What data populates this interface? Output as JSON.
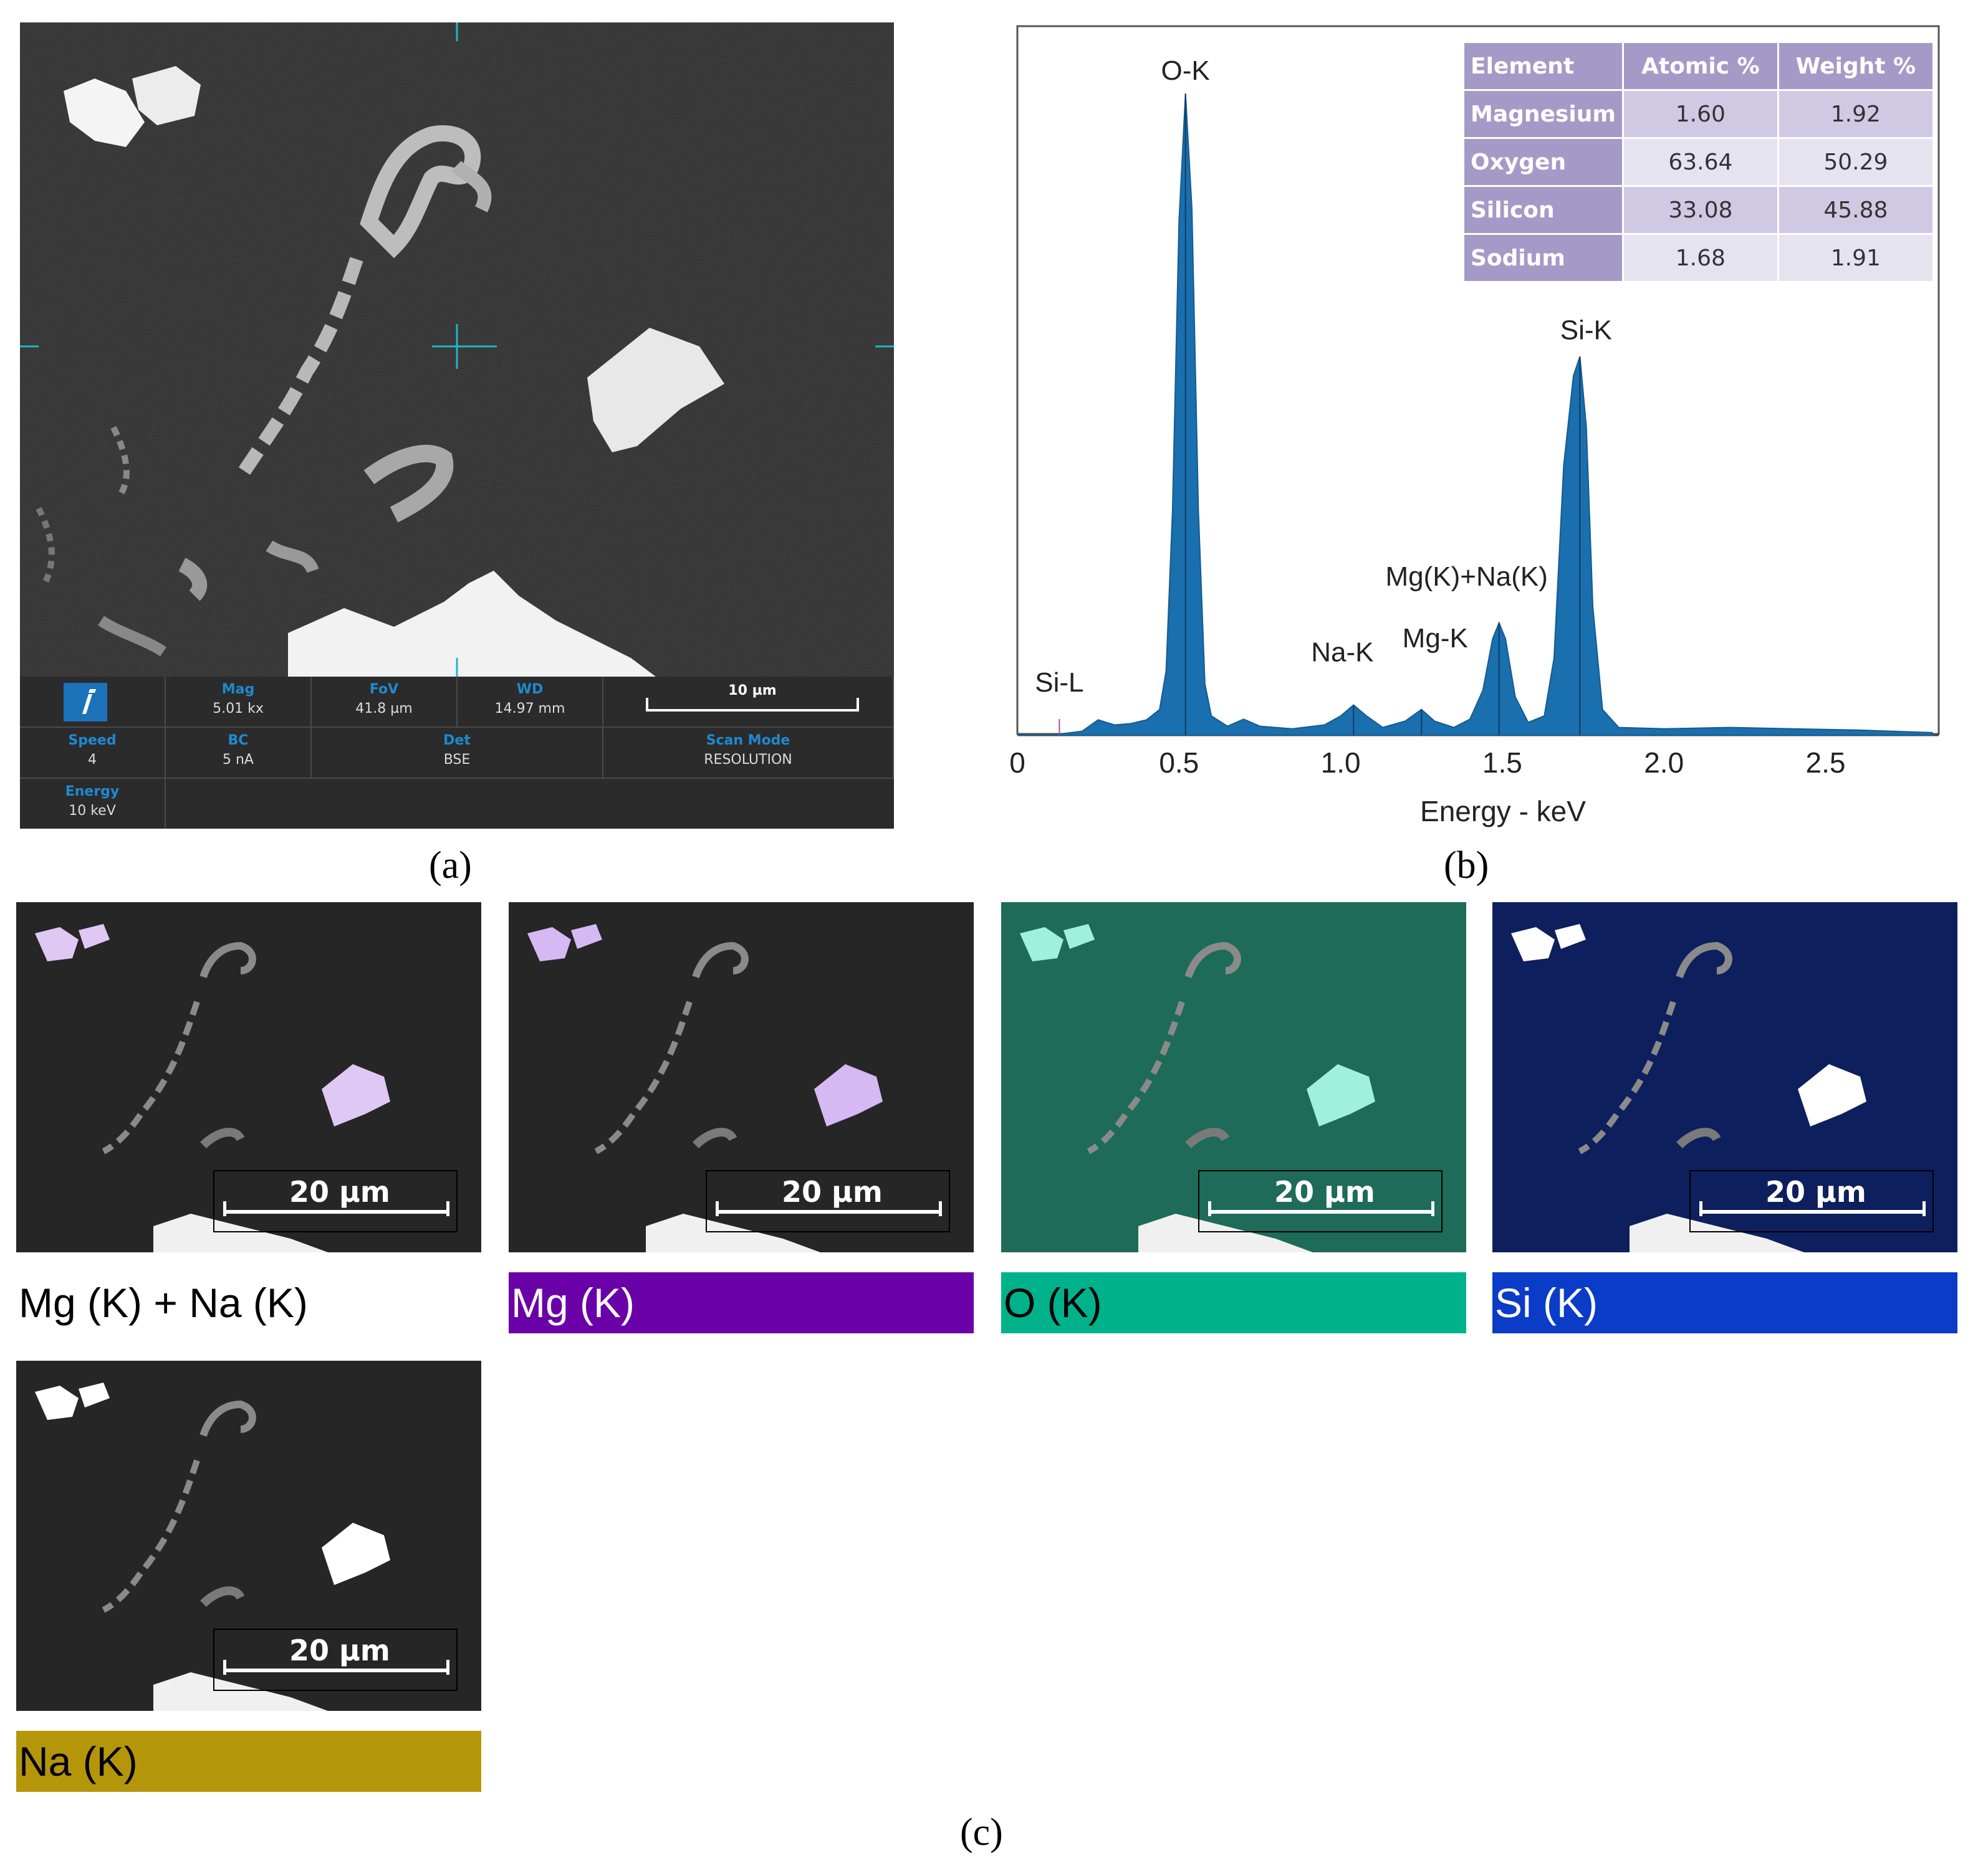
{
  "panel_a": {
    "label": "(a)",
    "info_bar": {
      "mag": {
        "label": "Mag",
        "value": "5.01 kx"
      },
      "fov": {
        "label": "FoV",
        "value": "41.8 µm"
      },
      "wd": {
        "label": "WD",
        "value": "14.97 mm"
      },
      "scale": "10 µm",
      "speed": {
        "label": "Speed",
        "value": "4"
      },
      "bc": {
        "label": "BC",
        "value": "5 nA"
      },
      "det": {
        "label": "Det",
        "value": "BSE"
      },
      "scan_mode": {
        "label": "Scan Mode",
        "value": "RESOLUTION"
      },
      "energy": {
        "label": "Energy",
        "value": "10 keV"
      }
    }
  },
  "panel_b": {
    "label": "(b)",
    "table": {
      "headers": [
        "Element",
        "Atomic %",
        "Weight %"
      ],
      "rows": [
        [
          "Magnesium",
          "1.60",
          "1.92"
        ],
        [
          "Oxygen",
          "63.64",
          "50.29"
        ],
        [
          "Silicon",
          "33.08",
          "45.88"
        ],
        [
          "Sodium",
          "1.68",
          "1.91"
        ]
      ]
    }
  },
  "chart_data": {
    "type": "area",
    "xlabel": "Energy - keV",
    "ylabel": "",
    "xlim": [
      0,
      2.85
    ],
    "ylim": [
      0,
      1.0
    ],
    "xticks": [
      "0",
      "0.5",
      "1.0",
      "1.5",
      "2.0",
      "2.5"
    ],
    "grid": false,
    "color": "#1a6fae",
    "peaks": [
      {
        "label": "Si-L",
        "x": 0.13,
        "y": 0.0
      },
      {
        "label": "O-K",
        "x": 0.52,
        "y": 1.0
      },
      {
        "label": "Na-K",
        "x": 1.04,
        "y": 0.047
      },
      {
        "label": "Mg-K",
        "x": 1.25,
        "y": 0.04
      },
      {
        "label": "Mg(K)+Na(K)",
        "x": 1.49,
        "y": 0.175
      },
      {
        "label": "Si-K",
        "x": 1.74,
        "y": 0.59
      }
    ],
    "spectrum": [
      [
        0.0,
        0.0
      ],
      [
        0.1,
        0.0
      ],
      [
        0.2,
        0.006
      ],
      [
        0.25,
        0.024
      ],
      [
        0.3,
        0.016
      ],
      [
        0.35,
        0.018
      ],
      [
        0.4,
        0.024
      ],
      [
        0.44,
        0.04
      ],
      [
        0.46,
        0.1
      ],
      [
        0.48,
        0.35
      ],
      [
        0.5,
        0.8
      ],
      [
        0.52,
        1.0
      ],
      [
        0.54,
        0.82
      ],
      [
        0.56,
        0.35
      ],
      [
        0.58,
        0.08
      ],
      [
        0.6,
        0.03
      ],
      [
        0.65,
        0.014
      ],
      [
        0.7,
        0.025
      ],
      [
        0.75,
        0.014
      ],
      [
        0.85,
        0.01
      ],
      [
        0.95,
        0.016
      ],
      [
        1.0,
        0.03
      ],
      [
        1.04,
        0.047
      ],
      [
        1.08,
        0.03
      ],
      [
        1.13,
        0.012
      ],
      [
        1.2,
        0.022
      ],
      [
        1.25,
        0.04
      ],
      [
        1.29,
        0.022
      ],
      [
        1.35,
        0.012
      ],
      [
        1.4,
        0.025
      ],
      [
        1.44,
        0.07
      ],
      [
        1.47,
        0.15
      ],
      [
        1.49,
        0.175
      ],
      [
        1.51,
        0.15
      ],
      [
        1.54,
        0.06
      ],
      [
        1.58,
        0.02
      ],
      [
        1.63,
        0.03
      ],
      [
        1.66,
        0.12
      ],
      [
        1.69,
        0.42
      ],
      [
        1.72,
        0.56
      ],
      [
        1.74,
        0.59
      ],
      [
        1.76,
        0.48
      ],
      [
        1.78,
        0.2
      ],
      [
        1.81,
        0.04
      ],
      [
        1.86,
        0.012
      ],
      [
        2.0,
        0.01
      ],
      [
        2.2,
        0.012
      ],
      [
        2.4,
        0.01
      ],
      [
        2.6,
        0.008
      ],
      [
        2.83,
        0.004
      ]
    ]
  },
  "panel_c": {
    "label": "(c)",
    "maps": [
      {
        "label": "Mg (K) + Na (K)",
        "scale": "20 µm",
        "bg": "#262626",
        "tint": "#e0c8f5",
        "label_bg": "#ffffff",
        "label_color": "#000000"
      },
      {
        "label": "Mg (K)",
        "scale": "20 µm",
        "bg": "#262626",
        "tint": "#d6b9f3",
        "label_bg": "#6a00a8",
        "label_color": "#ffffff"
      },
      {
        "label": "O (K)",
        "scale": "20 µm",
        "bg": "#1d6b58",
        "tint": "#9ff0dc",
        "label_bg": "#00b28c",
        "label_color": "#000000"
      },
      {
        "label": "Si (K)",
        "scale": "20 µm",
        "bg": "#0d1f5c",
        "tint": "#ffffff",
        "label_bg": "#0a3cc7",
        "label_color": "#ffffff"
      },
      {
        "label": "Na (K)",
        "scale": "20 µm",
        "bg": "#262626",
        "tint": "#ffffff",
        "label_bg": "#b5960b",
        "label_color": "#000000"
      }
    ]
  }
}
